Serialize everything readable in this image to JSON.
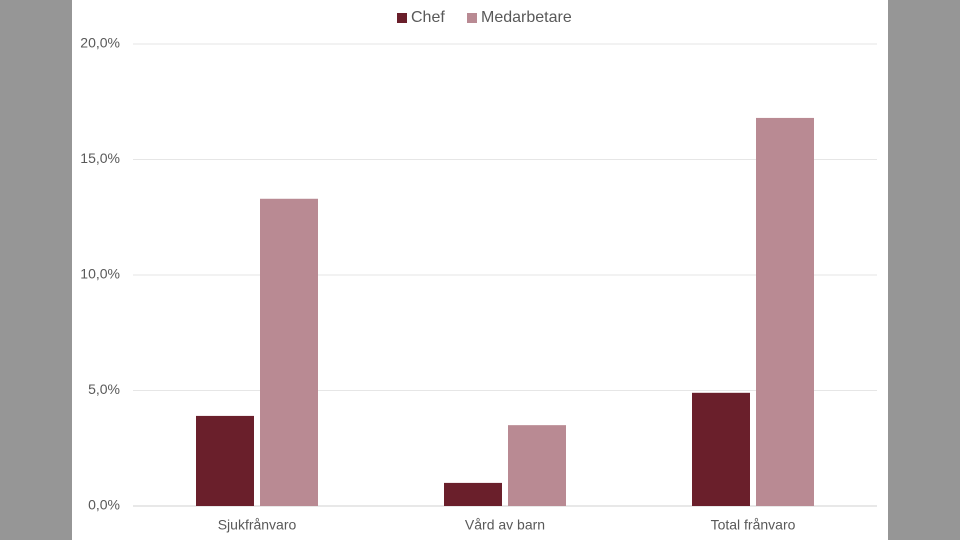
{
  "chart_data": {
    "type": "bar",
    "categories": [
      "Sjukfrånvaro",
      "Vård av barn",
      "Total frånvaro"
    ],
    "series": [
      {
        "name": "Chef",
        "color": "#6a1f2b",
        "values": [
          3.9,
          1.0,
          4.9
        ]
      },
      {
        "name": "Medarbetare",
        "color": "#b98a93",
        "values": [
          13.3,
          3.5,
          16.8
        ]
      }
    ],
    "ylim": [
      0,
      20
    ],
    "yticks": [
      {
        "value": 0,
        "label": "0,0%"
      },
      {
        "value": 5,
        "label": "5,0%"
      },
      {
        "value": 10,
        "label": "10,0%"
      },
      {
        "value": 15,
        "label": "15,0%"
      },
      {
        "value": 20,
        "label": "20,0%"
      }
    ],
    "grid": true,
    "legend": "top"
  }
}
